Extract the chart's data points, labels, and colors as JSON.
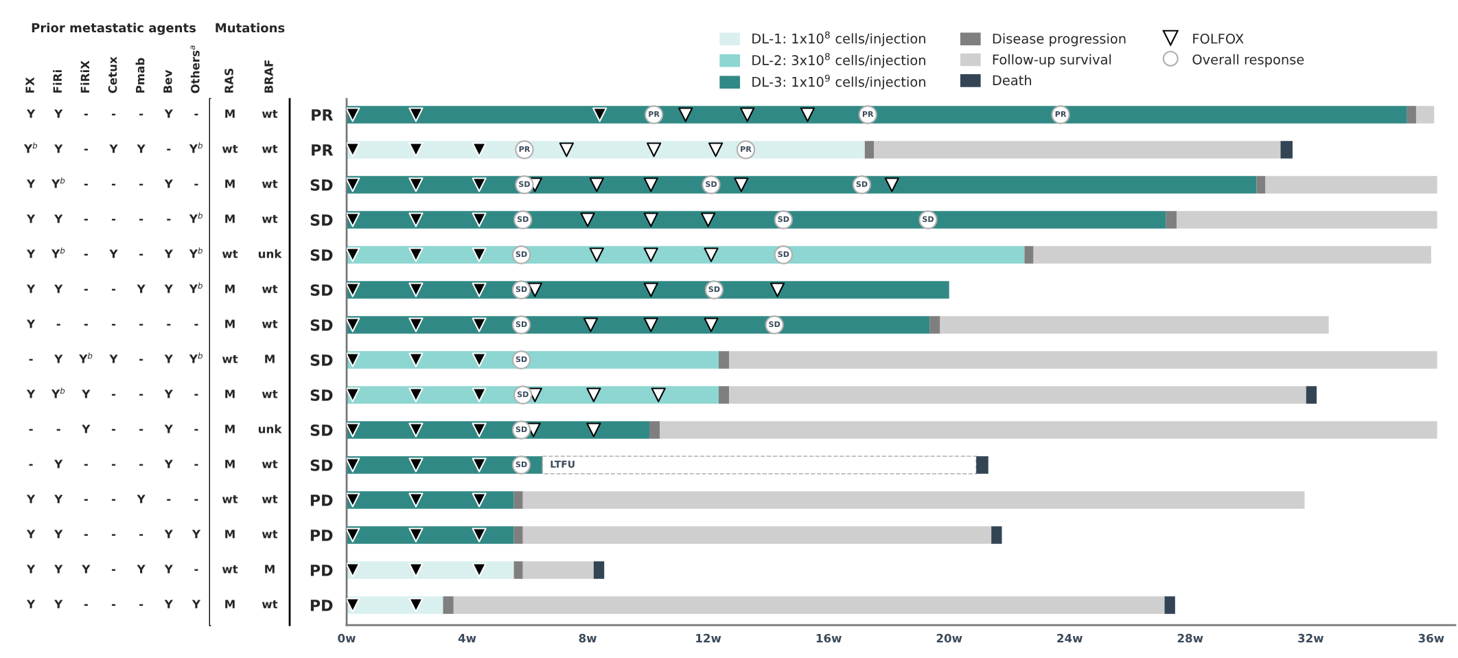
{
  "chart_data": [
    {
      "type": "other",
      "title": "Prior metastatic agents",
      "categories": [
        "FX",
        "FiRi",
        "FiRiX",
        "Cetux",
        "Pmab",
        "Bev",
        "Others$^{a}$"
      ],
      "cell_labels": [
        [
          "Y",
          "Y",
          "-",
          "-",
          "-",
          "Y",
          "-"
        ],
        [
          "Y$^{b}$",
          "Y",
          "-",
          "Y",
          "Y",
          "-",
          "Y$^{b}$"
        ],
        [
          "Y",
          "Y$^{b}$",
          "-",
          "-",
          "-",
          "Y",
          "-"
        ],
        [
          "Y",
          "Y",
          "-",
          "-",
          "-",
          "-",
          "Y$^{b}$"
        ],
        [
          "Y",
          "Y$^{b}$",
          "-",
          "Y",
          "-",
          "Y",
          "Y$^{b}$"
        ],
        [
          "Y",
          "Y",
          "-",
          "-",
          "Y",
          "Y",
          "Y$^{b}$"
        ],
        [
          "Y",
          "-",
          "-",
          "-",
          "-",
          "-",
          "-"
        ],
        [
          "-",
          "Y",
          "Y$^{b}$",
          "Y",
          "-",
          "Y",
          "Y$^{b}$"
        ],
        [
          "Y",
          "Y$^{b}$",
          "Y",
          "-",
          "-",
          "Y",
          "-"
        ],
        [
          "-",
          "-",
          "Y",
          "-",
          "-",
          "Y",
          "-"
        ],
        [
          "-",
          "Y",
          "-",
          "-",
          "-",
          "Y",
          "-"
        ],
        [
          "Y",
          "Y",
          "-",
          "-",
          "Y",
          "-",
          "-"
        ],
        [
          "Y",
          "Y",
          "-",
          "-",
          "-",
          "Y",
          "Y"
        ],
        [
          "Y",
          "Y",
          "Y",
          "-",
          "Y",
          "Y",
          "-"
        ],
        [
          "Y",
          "Y",
          "-",
          "-",
          "-",
          "Y",
          "Y"
        ]
      ]
    },
    {
      "type": "other",
      "title": "Mutations",
      "categories": [
        "RAS",
        "BRAF"
      ],
      "cell_labels": [
        [
          "M",
          "wt"
        ],
        [
          "wt",
          "wt"
        ],
        [
          "M",
          "wt"
        ],
        [
          "M",
          "wt"
        ],
        [
          "wt",
          "unk"
        ],
        [
          "M",
          "wt"
        ],
        [
          "M",
          "wt"
        ],
        [
          "wt",
          "M"
        ],
        [
          "M",
          "wt"
        ],
        [
          "M",
          "unk"
        ],
        [
          "M",
          "wt"
        ],
        [
          "wt",
          "wt"
        ],
        [
          "M",
          "wt"
        ],
        [
          "wt",
          "M"
        ],
        [
          "M",
          "wt"
        ]
      ]
    },
    {
      "type": "bar",
      "orientation": "horizontal",
      "stacked": true,
      "legend": "top",
      "categories": [
        "PR",
        "PR",
        "SD",
        "SD",
        "SD",
        "SD",
        "SD",
        "SD",
        "SD",
        "SD",
        "SD",
        "PD",
        "PD",
        "PD",
        "PD"
      ],
      "xlim": [
        0,
        36.8
      ],
      "xticks": [
        {
          "value": 0,
          "label": "0w"
        },
        {
          "value": 4,
          "label": "4w"
        },
        {
          "value": 8,
          "label": "8w"
        },
        {
          "value": 12,
          "label": "12w"
        },
        {
          "value": 16,
          "label": "16w"
        },
        {
          "value": 20,
          "label": "20w"
        },
        {
          "value": 24,
          "label": "24w"
        },
        {
          "value": 28,
          "label": "28w"
        },
        {
          "value": 32,
          "label": "32w"
        },
        {
          "value": 36,
          "label": "36w"
        }
      ],
      "series": [
        {
          "name": "DL-1: 1x10$^{8}$ cells/injection",
          "color": "#d9f0ef",
          "values": [
            null,
            17.2,
            null,
            null,
            null,
            null,
            null,
            null,
            null,
            null,
            null,
            null,
            null,
            5.55,
            3.2
          ]
        },
        {
          "name": "DL-2: 3x10$^{8}$ cells/injection",
          "color": "#8dd6d1",
          "values": [
            null,
            null,
            null,
            null,
            22.5,
            null,
            null,
            12.35,
            12.35,
            null,
            null,
            null,
            null,
            null,
            null
          ]
        },
        {
          "name": "DL-3: 1x10$^{9}$ cells/injection",
          "color": "#318985",
          "values": [
            35.2,
            null,
            30.2,
            27.2,
            null,
            20.0,
            19.35,
            null,
            null,
            10.05,
            6.5,
            5.55,
            5.55,
            null,
            null
          ]
        },
        {
          "name": "Disease progression",
          "color": "#7f7f7f",
          "values": [
            0.3,
            0.3,
            0.3,
            0.35,
            0.3,
            null,
            0.35,
            0.35,
            0.35,
            0.35,
            null,
            0.3,
            0.3,
            0.3,
            0.35
          ]
        },
        {
          "name": "LTFU",
          "color": "#ffffff",
          "line_style": "dashed",
          "values": [
            null,
            null,
            null,
            null,
            null,
            null,
            null,
            null,
            null,
            null,
            14.4,
            null,
            null,
            null,
            null
          ]
        },
        {
          "name": "Follow-up survival",
          "color": "#d0cfd0",
          "values": [
            0.6,
            13.5,
            5.7,
            8.65,
            13.2,
            null,
            12.9,
            23.5,
            19.15,
            25.8,
            null,
            25.95,
            15.55,
            2.35,
            23.6
          ]
        },
        {
          "name": "Death",
          "color": "#334555",
          "values": [
            null,
            0.4,
            null,
            null,
            null,
            null,
            null,
            null,
            0.35,
            null,
            0.4,
            null,
            0.35,
            0.35,
            0.35
          ]
        },
        {
          "type": "scatter",
          "color": "#000000",
          "marker": "triangle",
          "values": [
            0.2,
            0.2,
            0.2,
            0.2,
            0.2,
            0.2,
            0.2,
            0.2,
            0.2,
            0.2,
            0.2,
            0.2,
            0.2,
            0.2,
            0.2
          ]
        },
        {
          "type": "scatter",
          "color": "#000000",
          "marker": "triangle",
          "values": [
            2.3,
            2.3,
            2.3,
            2.3,
            2.3,
            2.3,
            2.3,
            2.3,
            2.3,
            2.3,
            2.3,
            2.3,
            2.3,
            2.3,
            2.3
          ]
        },
        {
          "type": "scatter",
          "color": "#000000",
          "marker": "triangle",
          "values": [
            8.4,
            4.4,
            4.4,
            4.4,
            4.4,
            4.4,
            4.4,
            4.4,
            4.4,
            4.4,
            4.4,
            4.4,
            4.4,
            4.4,
            null
          ]
        },
        {
          "type": "scatter",
          "name": "FOLFOX",
          "color": "#ffffff",
          "marker": "triangle",
          "values": [
            11.25,
            7.3,
            6.25,
            8.0,
            8.3,
            6.25,
            8.1,
            null,
            6.25,
            6.2,
            null,
            null,
            null,
            null,
            null
          ]
        },
        {
          "type": "scatter",
          "color": "#ffffff",
          "marker": "triangle",
          "values": [
            13.3,
            10.2,
            8.3,
            10.1,
            10.1,
            10.1,
            10.1,
            null,
            8.2,
            8.2,
            null,
            null,
            null,
            null,
            null
          ]
        },
        {
          "type": "scatter",
          "color": "#ffffff",
          "marker": "triangle",
          "values": [
            15.3,
            12.25,
            10.1,
            12.0,
            12.1,
            14.3,
            12.1,
            null,
            10.35,
            null,
            null,
            null,
            null,
            null,
            null
          ]
        },
        {
          "type": "scatter",
          "color": "#ffffff",
          "marker": "triangle",
          "values": [
            null,
            null,
            13.1,
            null,
            null,
            null,
            null,
            null,
            null,
            null,
            null,
            null,
            null,
            null,
            null
          ]
        },
        {
          "type": "scatter",
          "color": "#ffffff",
          "marker": "triangle",
          "values": [
            null,
            null,
            18.1,
            null,
            null,
            null,
            null,
            null,
            null,
            null,
            null,
            null,
            null,
            null,
            null
          ]
        },
        {
          "type": "scatter",
          "name": "Overall response",
          "color": "#ffffff",
          "marker": "circle",
          "values": [
            10.2,
            5.9,
            5.9,
            5.85,
            5.8,
            5.8,
            5.8,
            5.8,
            5.85,
            5.8,
            5.8,
            null,
            null,
            null,
            null
          ],
          "value_labels": [
            "PR",
            "PR",
            "SD",
            "SD",
            "SD",
            "SD",
            "SD",
            "SD",
            "SD",
            "SD",
            "SD",
            null,
            null,
            null,
            null
          ]
        },
        {
          "type": "scatter",
          "color": "#ffffff",
          "marker": "circle",
          "values": [
            17.3,
            13.25,
            12.1,
            14.5,
            14.5,
            12.2,
            14.2,
            null,
            null,
            null,
            null,
            null,
            null,
            null,
            null
          ],
          "value_labels": [
            "PR",
            "PR",
            "SD",
            "SD",
            "SD",
            "SD",
            "SD",
            null,
            null,
            null,
            null,
            null,
            null,
            null,
            null
          ]
        },
        {
          "type": "scatter",
          "color": "#ffffff",
          "marker": "circle",
          "values": [
            23.7,
            null,
            17.1,
            19.3,
            null,
            null,
            null,
            null,
            null,
            null,
            null,
            null,
            null,
            null,
            null
          ],
          "value_labels": [
            "PR",
            null,
            "SD",
            "SD",
            null,
            null,
            null,
            null,
            null,
            null,
            null,
            null,
            null,
            null,
            null
          ]
        }
      ]
    }
  ]
}
